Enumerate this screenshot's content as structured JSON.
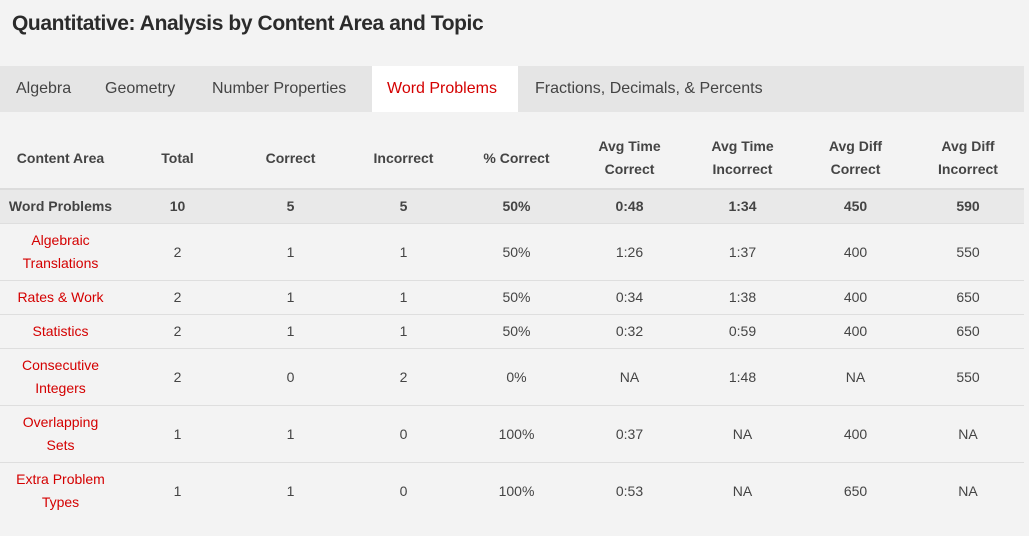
{
  "page": {
    "title": "Quantitative: Analysis by Content Area and Topic"
  },
  "tabs": [
    {
      "label": "Algebra",
      "active": false
    },
    {
      "label": "Geometry",
      "active": false
    },
    {
      "label": "Number Properties",
      "active": false
    },
    {
      "label": "Word Problems",
      "active": true
    },
    {
      "label": "Fractions, Decimals, & Percents",
      "active": false
    }
  ],
  "table": {
    "headers": [
      [
        "Content Area"
      ],
      [
        "Total"
      ],
      [
        "Correct"
      ],
      [
        "Incorrect"
      ],
      [
        "% Correct"
      ],
      [
        "Avg Time",
        "Correct"
      ],
      [
        "Avg Time",
        "Incorrect"
      ],
      [
        "Avg Diff",
        "Correct"
      ],
      [
        "Avg Diff",
        "Incorrect"
      ]
    ],
    "summary": {
      "name": "Word Problems",
      "total": "10",
      "correct": "5",
      "incorrect": "5",
      "pct_correct": "50%",
      "avg_time_correct": "0:48",
      "avg_time_incorrect": "1:34",
      "avg_diff_correct": "450",
      "avg_diff_incorrect": "590"
    },
    "rows": [
      {
        "name": [
          "Algebraic",
          "Translations"
        ],
        "total": "2",
        "correct": "1",
        "incorrect": "1",
        "pct_correct": "50%",
        "avg_time_correct": "1:26",
        "avg_time_incorrect": "1:37",
        "avg_diff_correct": "400",
        "avg_diff_incorrect": "550"
      },
      {
        "name": [
          "Rates & Work"
        ],
        "total": "2",
        "correct": "1",
        "incorrect": "1",
        "pct_correct": "50%",
        "avg_time_correct": "0:34",
        "avg_time_incorrect": "1:38",
        "avg_diff_correct": "400",
        "avg_diff_incorrect": "650"
      },
      {
        "name": [
          "Statistics"
        ],
        "total": "2",
        "correct": "1",
        "incorrect": "1",
        "pct_correct": "50%",
        "avg_time_correct": "0:32",
        "avg_time_incorrect": "0:59",
        "avg_diff_correct": "400",
        "avg_diff_incorrect": "650"
      },
      {
        "name": [
          "Consecutive",
          "Integers"
        ],
        "total": "2",
        "correct": "0",
        "incorrect": "2",
        "pct_correct": "0%",
        "avg_time_correct": "NA",
        "avg_time_incorrect": "1:48",
        "avg_diff_correct": "NA",
        "avg_diff_incorrect": "550"
      },
      {
        "name": [
          "Overlapping",
          "Sets"
        ],
        "total": "1",
        "correct": "1",
        "incorrect": "0",
        "pct_correct": "100%",
        "avg_time_correct": "0:37",
        "avg_time_incorrect": "NA",
        "avg_diff_correct": "400",
        "avg_diff_incorrect": "NA"
      },
      {
        "name": [
          "Extra Problem",
          "Types"
        ],
        "total": "1",
        "correct": "1",
        "incorrect": "0",
        "pct_correct": "100%",
        "avg_time_correct": "0:53",
        "avg_time_incorrect": "NA",
        "avg_diff_correct": "650",
        "avg_diff_incorrect": "NA"
      }
    ]
  },
  "colors": {
    "accent": "#d40000",
    "background": "#f3f3f3",
    "tab_bar": "#e5e5e5",
    "summary_row": "#e9e9e9"
  }
}
